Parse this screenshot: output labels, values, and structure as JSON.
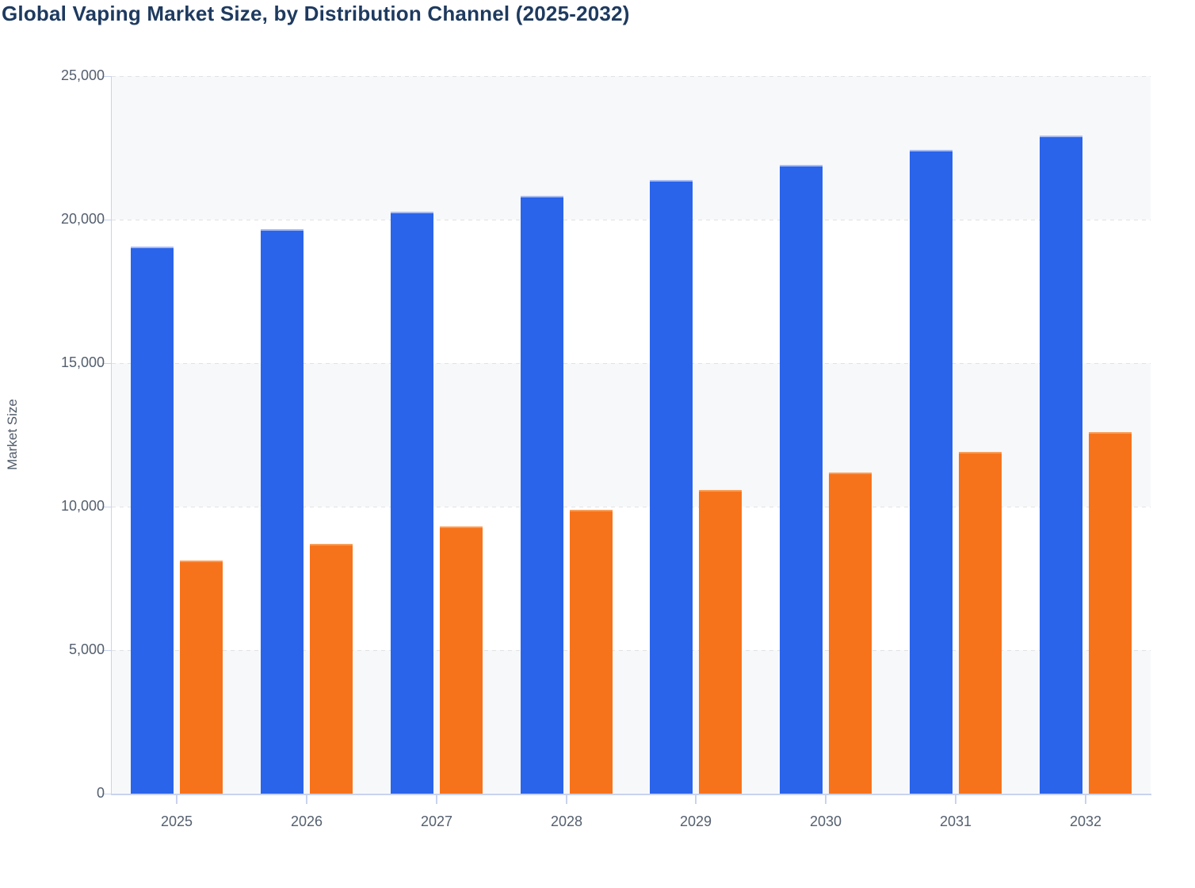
{
  "page": {
    "title": "Global Vaping Market Size, by Distribution Channel (2025-2032)"
  },
  "chart_data": {
    "type": "bar",
    "title": "Global Vaping Market Size, by Distribution Channel (2025-2032)",
    "xlabel": "",
    "ylabel": "Market Size",
    "categories": [
      "2025",
      "2026",
      "2027",
      "2028",
      "2029",
      "2030",
      "2031",
      "2032"
    ],
    "series": [
      {
        "name": "series-blue",
        "color": "#2a64ea",
        "cap_color": "#a9bcf2",
        "values": [
          19060,
          19670,
          20280,
          20830,
          21390,
          21910,
          22420,
          22930
        ]
      },
      {
        "name": "series-orange",
        "color": "#f7731b",
        "cap_color": "#fa9d55",
        "values": [
          8110,
          8690,
          9300,
          9900,
          10570,
          11200,
          11900,
          12590
        ]
      }
    ],
    "ylim": [
      0,
      25000
    ],
    "ytick_interval": 5000,
    "ytick_labels": [
      "0",
      "5,000",
      "10,000",
      "15,000",
      "20,000",
      "25,000"
    ],
    "grid": "horizontal-dashed",
    "legend": "none",
    "split_area_colors": [
      "#f7f8fa",
      "#ffffff"
    ],
    "axis_line_color": "#c9d3ee",
    "label_color": "#545f6e",
    "title_color": "#1e3a5f"
  }
}
